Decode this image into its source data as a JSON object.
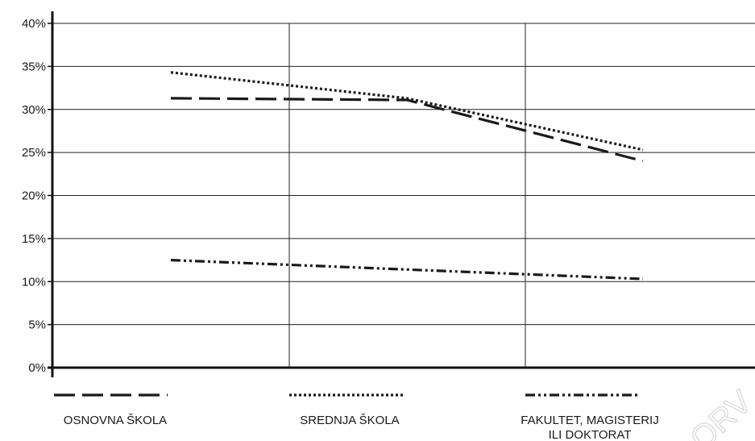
{
  "chart_data": {
    "type": "line",
    "categories": [
      "",
      "",
      ""
    ],
    "y_ticks": [
      "0%",
      "5%",
      "10%",
      "15%",
      "20%",
      "25%",
      "30%",
      "35%",
      "40%"
    ],
    "ylim": [
      0,
      40
    ],
    "grid": true,
    "legend_position": "bottom",
    "series": [
      {
        "name": "OSNOVNA ŠKOLA",
        "dash": "long-dash",
        "color": "#1a1a1a",
        "values": [
          31.3,
          31.1,
          24.0
        ]
      },
      {
        "name": "SREDNJA ŠKOLA",
        "dash": "dotted",
        "color": "#1a1a1a",
        "values": [
          34.3,
          31.3,
          25.3
        ]
      },
      {
        "name": "FAKULTET, MAGISTERIJ ILI DOKTORAT",
        "dash": "dash-dot-dot",
        "color": "#1a1a1a",
        "values": [
          12.5,
          11.4,
          10.3
        ]
      }
    ],
    "legend_label_lines": [
      [
        "OSNOVNA ŠKOLA"
      ],
      [
        "SREDNJA ŠKOLA"
      ],
      [
        "FAKULTET, MAGISTERIJ",
        "ILI DOKTORAT"
      ]
    ]
  },
  "watermark": "ORV"
}
